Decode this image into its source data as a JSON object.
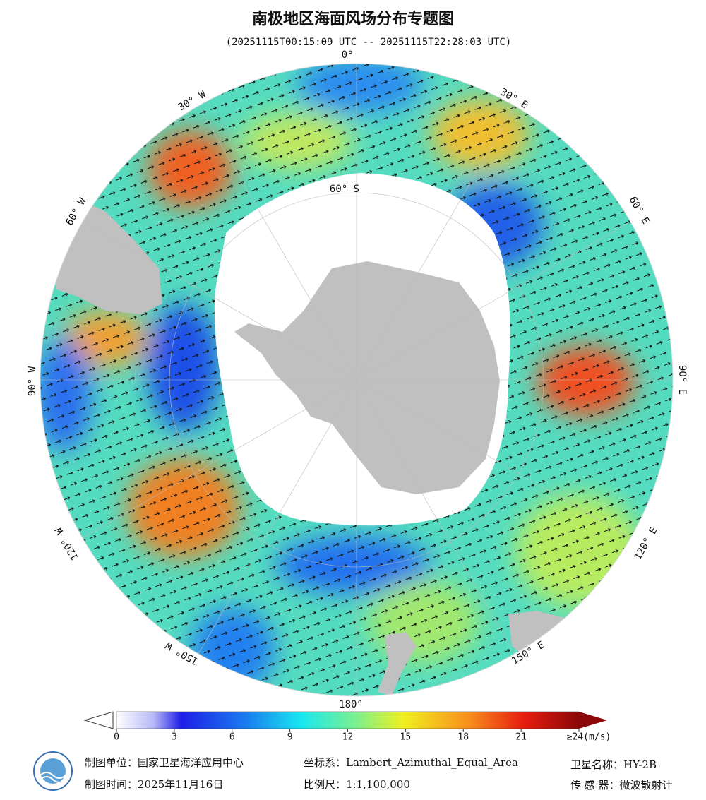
{
  "title": "南极地区海面风场分布专题图",
  "subtitle": "(20251115T00:15:09 UTC -- 20251115T22:28:03 UTC)",
  "map": {
    "longitude_labels": [
      "0°",
      "30° E",
      "60° E",
      "90° E",
      "120° E",
      "150° E",
      "180°",
      "150° W",
      "120° W",
      "90° W",
      "60° W",
      "30° W"
    ],
    "latitude_label": "60° S"
  },
  "colorbar": {
    "lim": [
      0,
      24
    ],
    "ticks": [
      0,
      3,
      6,
      9,
      12,
      15,
      18,
      21,
      {
        "value": 24,
        "label": "≥24(m/s)"
      }
    ]
  },
  "footer": {
    "organization": "制图单位：国家卫星海洋应用中心",
    "date": "制图时间：2025年11月16日",
    "projection": "坐标系：Lambert_Azimuthal_Equal_Area",
    "scale": "比例尺：1:1,100,000",
    "satellite": "卫星名称：HY-2B",
    "sensor": "传 感 器：微波散射计"
  }
}
